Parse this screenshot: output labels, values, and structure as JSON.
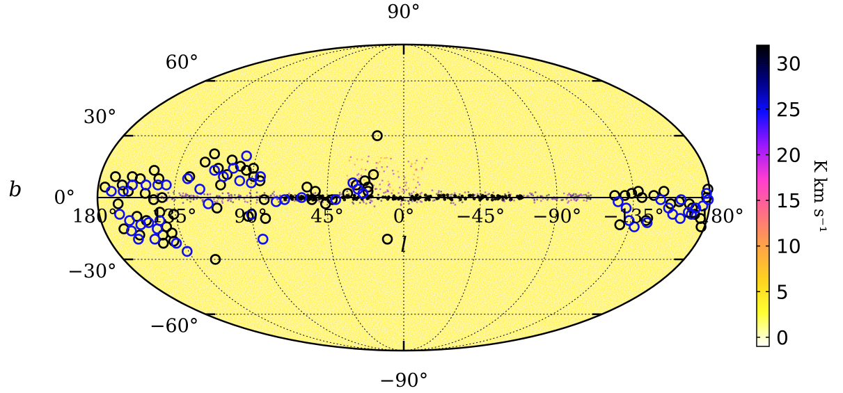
{
  "chart_data": {
    "type": "scatter",
    "projection": "mollweide",
    "xlabel": "l",
    "ylabel": "b",
    "xlim": [
      180,
      -180
    ],
    "ylim": [
      -90,
      90
    ],
    "grid": true,
    "x_tick_labels": [
      "180°",
      "135°",
      "90°",
      "45°",
      "0°",
      "−45°",
      "−90°",
      "−135°",
      "−180°"
    ],
    "x_tick_values": [
      180,
      135,
      90,
      45,
      0,
      -45,
      -90,
      -135,
      -180
    ],
    "y_tick_labels": [
      "90°",
      "60°",
      "30°",
      "0°",
      "−30°",
      "−60°",
      "−90°"
    ],
    "y_tick_values": [
      90,
      60,
      30,
      0,
      -30,
      -60,
      -90
    ],
    "background_map": {
      "description_units": "K km s⁻¹",
      "colorbar_label": "K km s⁻¹",
      "colorbar_range": [
        -1,
        32
      ],
      "colorbar_ticks": [
        "0",
        "5",
        "10",
        "15",
        "20",
        "25",
        "30"
      ],
      "colorbar_tick_values": [
        0,
        5,
        10,
        15,
        20,
        25,
        30
      ],
      "colormap": [
        "#ffffff",
        "#ffff33",
        "#ffd21f",
        "#ffa347",
        "#ff6e85",
        "#ff3dd1",
        "#9b18ff",
        "#0d0dff",
        "#00007a",
        "#000000"
      ]
    },
    "series": [
      {
        "marker": "circle-open",
        "color": "#000000",
        "points": [
          [
            176,
            5
          ],
          [
            171,
            10
          ],
          [
            166,
            6
          ],
          [
            161,
            10
          ],
          [
            156,
            9
          ],
          [
            149,
            13
          ],
          [
            145,
            9
          ],
          [
            142,
            0
          ],
          [
            147,
            -1
          ],
          [
            152,
            2
          ],
          [
            162,
            3
          ],
          [
            168,
            -3
          ],
          [
            158,
            -9
          ],
          [
            153,
            -11
          ],
          [
            144,
            -7
          ],
          [
            142,
            -14
          ],
          [
            140,
            -17
          ],
          [
            146,
            -18
          ],
          [
            160,
            -18
          ],
          [
            168,
            -15
          ],
          [
            136,
            -8
          ],
          [
            141,
            -21
          ],
          [
            148,
            -22
          ],
          [
            127,
            10
          ],
          [
            120,
            17
          ],
          [
            116,
            21
          ],
          [
            111,
            14
          ],
          [
            104,
            18
          ],
          [
            98,
            15
          ],
          [
            94,
            13
          ],
          [
            89,
            10
          ],
          [
            85,
            8
          ],
          [
            90,
            14
          ],
          [
            105,
            11
          ],
          [
            108,
            6
          ],
          [
            82,
            -1
          ],
          [
            92,
            -9
          ],
          [
            82,
            -10
          ],
          [
            121,
            -30
          ],
          [
            110,
            -5
          ],
          [
            57,
            5
          ],
          [
            54,
            -1
          ],
          [
            52,
            3
          ],
          [
            46,
            -3
          ],
          [
            42,
            -1
          ],
          [
            33,
            2
          ],
          [
            28,
            6
          ],
          [
            23,
            8
          ],
          [
            21,
            5
          ],
          [
            18,
            11
          ],
          [
            21,
            3
          ],
          [
            17,
            30
          ],
          [
            10,
            -20
          ],
          [
            -124,
            1
          ],
          [
            -130,
            1
          ],
          [
            -134,
            2
          ],
          [
            -138,
            3
          ],
          [
            -140,
            0
          ],
          [
            -147,
            1
          ],
          [
            -153,
            3
          ],
          [
            -157,
            -3
          ],
          [
            -162,
            -2
          ],
          [
            -168,
            -3
          ],
          [
            -170,
            -5
          ],
          [
            -172,
            -8
          ],
          [
            -176,
            -10
          ],
          [
            -178,
            -14
          ],
          [
            -144,
            -11
          ],
          [
            -129,
            -13
          ],
          [
            -179,
            4
          ],
          [
            -178,
            0
          ]
        ]
      },
      {
        "marker": "circle-open",
        "color": "#1010ee",
        "points": [
          [
            172,
            3
          ],
          [
            165,
            3
          ],
          [
            160,
            6
          ],
          [
            152,
            6
          ],
          [
            145,
            6
          ],
          [
            140,
            6
          ],
          [
            168,
            -8
          ],
          [
            163,
            -11
          ],
          [
            157,
            -13
          ],
          [
            152,
            -12
          ],
          [
            145,
            -11
          ],
          [
            148,
            -15
          ],
          [
            152,
            -20
          ],
          [
            164,
            -16
          ],
          [
            162,
            -20
          ],
          [
            136,
            -26
          ],
          [
            140,
            -22
          ],
          [
            128,
            9
          ],
          [
            113,
            13
          ],
          [
            102,
            14
          ],
          [
            97,
            8
          ],
          [
            90,
            7
          ],
          [
            85,
            10
          ],
          [
            96,
            20
          ],
          [
            107,
            10
          ],
          [
            120,
            4
          ],
          [
            115,
            -3
          ],
          [
            90,
            -8
          ],
          [
            86,
            -20
          ],
          [
            75,
            -2
          ],
          [
            70,
            -1
          ],
          [
            60,
            0
          ],
          [
            40,
            -1
          ],
          [
            30,
            7
          ],
          [
            27,
            4
          ],
          [
            24,
            2
          ],
          [
            -126,
            -2
          ],
          [
            -131,
            -5
          ],
          [
            -134,
            -11
          ],
          [
            -138,
            -14
          ],
          [
            -145,
            -12
          ],
          [
            -151,
            -1
          ],
          [
            -156,
            -5
          ],
          [
            -159,
            -8
          ],
          [
            -164,
            -10
          ],
          [
            -168,
            -7
          ],
          [
            -172,
            -5
          ],
          [
            -176,
            -4
          ],
          [
            -178,
            2
          ],
          [
            -179,
            -1
          ],
          [
            -163,
            -1
          ],
          [
            -170,
            -8
          ]
        ]
      }
    ]
  }
}
